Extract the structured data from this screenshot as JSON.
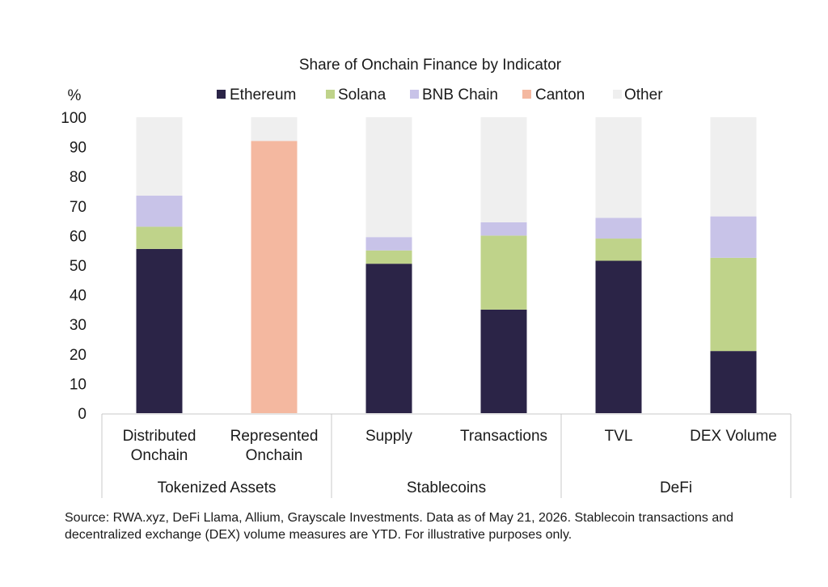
{
  "chart_data": {
    "type": "bar",
    "stacked": true,
    "title": "Share of Onchain Finance by Indicator",
    "ylabel": "%",
    "ylim": [
      0,
      100
    ],
    "yticks": [
      0,
      10,
      20,
      30,
      40,
      50,
      60,
      70,
      80,
      90,
      100
    ],
    "grid": false,
    "legend_position": "top",
    "categories": [
      [
        "Distributed",
        "Onchain"
      ],
      [
        "Represented",
        "Onchain"
      ],
      [
        "Supply"
      ],
      [
        "Transactions"
      ],
      [
        "TVL"
      ],
      [
        "DEX Volume"
      ]
    ],
    "groups": [
      {
        "label": "Tokenized Assets",
        "start": 0,
        "end": 1
      },
      {
        "label": "Stablecoins",
        "start": 2,
        "end": 3
      },
      {
        "label": "DeFi",
        "start": 4,
        "end": 5
      }
    ],
    "series": [
      {
        "name": "Ethereum",
        "color": "#2b2447",
        "values": [
          55.5,
          0,
          50.5,
          35,
          51.5,
          21
        ]
      },
      {
        "name": "Solana",
        "color": "#bfd38a",
        "values": [
          7.5,
          0,
          4.5,
          25,
          7.5,
          31.5
        ]
      },
      {
        "name": "BNB Chain",
        "color": "#c8c3e8",
        "values": [
          10.5,
          0,
          4.5,
          4.5,
          7,
          14
        ]
      },
      {
        "name": "Canton",
        "color": "#f4b8a0",
        "values": [
          0,
          92,
          0,
          0,
          0,
          0
        ]
      },
      {
        "name": "Other",
        "color": "#efefef",
        "values": [
          26.5,
          8,
          40.5,
          35.5,
          34,
          33.5
        ]
      }
    ]
  },
  "source_note": "Source: RWA.xyz, DeFi Llama, Allium, Grayscale Investments. Data as of May 21, 2026. Stablecoin transactions and decentralized exchange (DEX) volume measures are YTD. For illustrative purposes only."
}
